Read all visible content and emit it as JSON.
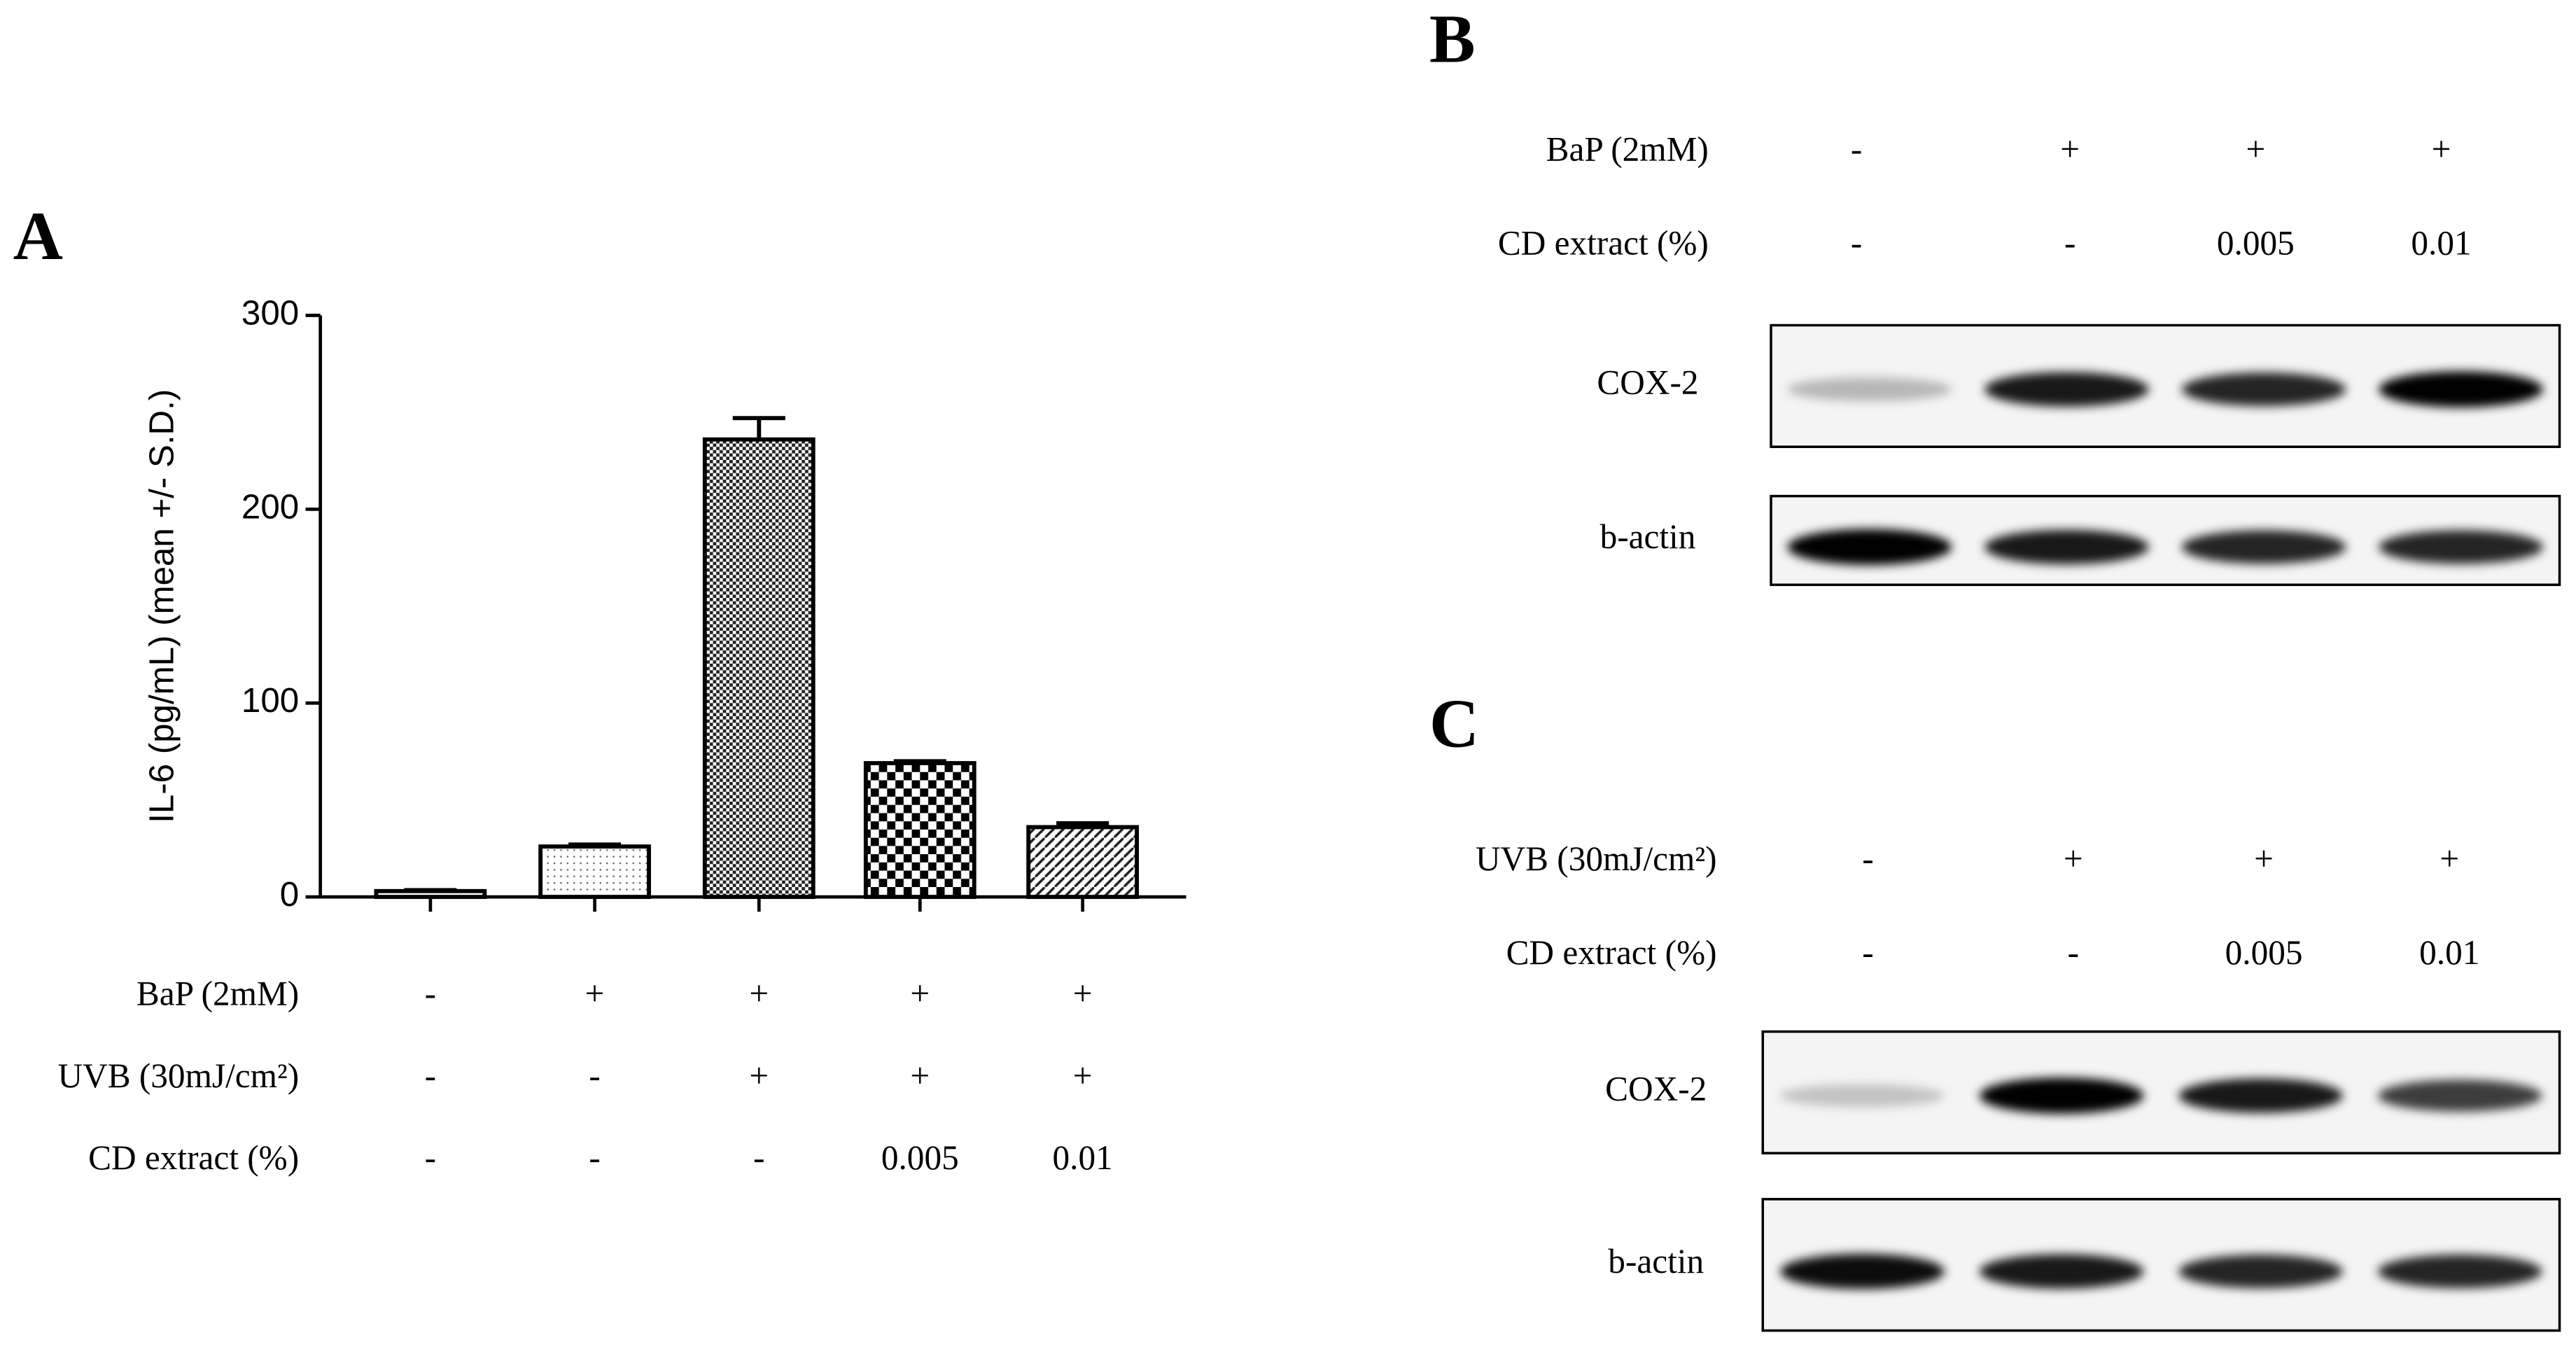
{
  "chart_data": {
    "type": "bar",
    "panel": "A",
    "ylabel": "IL-6 (pg/mL) (mean +/- S.D.)",
    "categories": [
      null,
      null,
      null,
      null,
      null
    ],
    "values": [
      3,
      26,
      236,
      69,
      36
    ],
    "errors": [
      0.5,
      1,
      11,
      1,
      2
    ],
    "ylim": [
      0,
      300
    ],
    "yticks": [
      0,
      100,
      200,
      300
    ],
    "treatments": [
      {
        "label": "BaP (2mM)",
        "values": [
          "-",
          "+",
          "+",
          "+",
          "+"
        ]
      },
      {
        "label": "UVB (30mJ/cm²)",
        "values": [
          "-",
          "-",
          "+",
          "+",
          "+"
        ]
      },
      {
        "label": "CD extract (%)",
        "values": [
          "-",
          "-",
          "-",
          "0.005",
          "0.01"
        ]
      }
    ]
  },
  "blots": [
    {
      "panel": "B",
      "treatments": [
        {
          "label": "BaP (2mM)",
          "values": [
            "-",
            "+",
            "+",
            "+"
          ]
        },
        {
          "label": "CD extract (%)",
          "values": [
            "-",
            "-",
            "0.005",
            "0.01"
          ]
        }
      ],
      "bands": [
        "COX-2",
        "b-actin"
      ]
    },
    {
      "panel": "C",
      "treatments": [
        {
          "label": "UVB (30mJ/cm²)",
          "values": [
            "-",
            "+",
            "+",
            "+"
          ]
        },
        {
          "label": "CD extract (%)",
          "values": [
            "-",
            "-",
            "0.005",
            "0.01"
          ]
        }
      ],
      "bands": [
        "COX-2",
        "b-actin"
      ]
    }
  ]
}
